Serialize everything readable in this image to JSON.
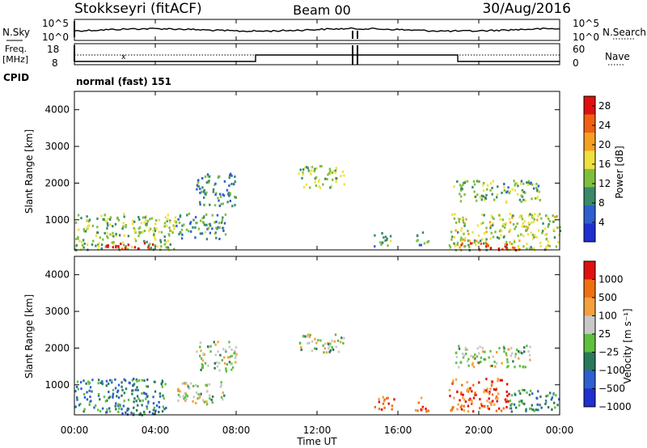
{
  "header": {
    "station": "Stokkseyri (fitACF)",
    "beam": "Beam 00",
    "date": "30/Aug/2016"
  },
  "top_panels": {
    "nsky_label": "N.Sky",
    "nsky_ticks": [
      "10^5",
      "10^0"
    ],
    "nsearch_label": "N.Search",
    "nsearch_ticks": [
      "10^5",
      "10^0"
    ],
    "freq_label": "Freq.",
    "freq_unit": "[MHz]",
    "freq_ticks": [
      "18",
      "8"
    ],
    "nave_label": "Nave",
    "nave_ticks": [
      "60",
      "0"
    ],
    "cpid_label": "CPID",
    "cpid_value": "normal (fast) 151"
  },
  "colors": {
    "power_scale": [
      "#1f2fd0",
      "#2f5fd0",
      "#3a8a6a",
      "#7fbf3f",
      "#f0e040",
      "#f5a020",
      "#f06010",
      "#e01010"
    ],
    "velocity_scale": [
      "#1f2fd0",
      "#2f5fd0",
      "#2a7a5a",
      "#5fbf3f",
      "#c8c8c8",
      "#f5a040",
      "#f07010",
      "#e01010"
    ]
  },
  "chart_data": [
    {
      "type": "heatmap",
      "name": "power",
      "ylabel": "Slant Range [km]",
      "ylim": [
        180,
        4500
      ],
      "yticks": [
        "1000",
        "2000",
        "3000",
        "4000"
      ],
      "colorbar_label": "Power [dB]",
      "colorbar_ticks": [
        "4",
        "8",
        "12",
        "16",
        "20",
        "24",
        "28"
      ],
      "colorbar_range": [
        0,
        30
      ],
      "patches": [
        {
          "t0": 0.0,
          "t1": 5.0,
          "r0": 200,
          "r1": 1200,
          "level": 0.45
        },
        {
          "t0": 1.5,
          "t1": 4.0,
          "r0": 200,
          "r1": 400,
          "level": 0.95
        },
        {
          "t0": 5.0,
          "t1": 7.5,
          "r0": 500,
          "r1": 1200,
          "level": 0.35
        },
        {
          "t0": 6.0,
          "t1": 8.0,
          "r0": 1400,
          "r1": 2300,
          "level": 0.3
        },
        {
          "t0": 11.0,
          "t1": 13.3,
          "r0": 1900,
          "r1": 2500,
          "level": 0.45
        },
        {
          "t0": 14.8,
          "t1": 15.8,
          "r0": 300,
          "r1": 700,
          "level": 0.35
        },
        {
          "t0": 16.8,
          "t1": 17.5,
          "r0": 300,
          "r1": 700,
          "level": 0.35
        },
        {
          "t0": 18.5,
          "t1": 24.0,
          "r0": 200,
          "r1": 1200,
          "level": 0.5
        },
        {
          "t0": 19.0,
          "t1": 22.0,
          "r0": 200,
          "r1": 400,
          "level": 0.9
        },
        {
          "t0": 18.7,
          "t1": 23.0,
          "r0": 1500,
          "r1": 2100,
          "level": 0.4
        }
      ]
    },
    {
      "type": "heatmap",
      "name": "velocity",
      "xlabel": "Time UT",
      "ylabel": "Slant Range [km]",
      "ylim": [
        180,
        4500
      ],
      "yticks": [
        "1000",
        "2000",
        "3000",
        "4000"
      ],
      "xticks": [
        "00:00",
        "04:00",
        "08:00",
        "12:00",
        "16:00",
        "20:00",
        "00:00"
      ],
      "xlim": [
        0,
        24
      ],
      "colorbar_label": "Velocity [m s⁻¹]",
      "colorbar_ticks": [
        "1000",
        "500",
        "100",
        "25",
        "−25",
        "−100",
        "−500",
        "−1000"
      ],
      "patches": [
        {
          "t0": 0.0,
          "t1": 4.5,
          "r0": 200,
          "r1": 1200,
          "level": 0.3
        },
        {
          "t0": 5.0,
          "t1": 7.5,
          "r0": 500,
          "r1": 1100,
          "level": 0.5
        },
        {
          "t0": 6.0,
          "t1": 8.0,
          "r0": 1400,
          "r1": 2200,
          "level": 0.5
        },
        {
          "t0": 11.0,
          "t1": 13.3,
          "r0": 1900,
          "r1": 2400,
          "level": 0.5
        },
        {
          "t0": 14.8,
          "t1": 15.8,
          "r0": 300,
          "r1": 700,
          "level": 0.8
        },
        {
          "t0": 16.8,
          "t1": 17.5,
          "r0": 300,
          "r1": 700,
          "level": 0.8
        },
        {
          "t0": 18.5,
          "t1": 21.5,
          "r0": 300,
          "r1": 1200,
          "level": 0.82
        },
        {
          "t0": 18.8,
          "t1": 22.5,
          "r0": 1500,
          "r1": 2100,
          "level": 0.5
        },
        {
          "t0": 21.5,
          "t1": 24.0,
          "r0": 300,
          "r1": 900,
          "level": 0.35
        }
      ]
    }
  ]
}
